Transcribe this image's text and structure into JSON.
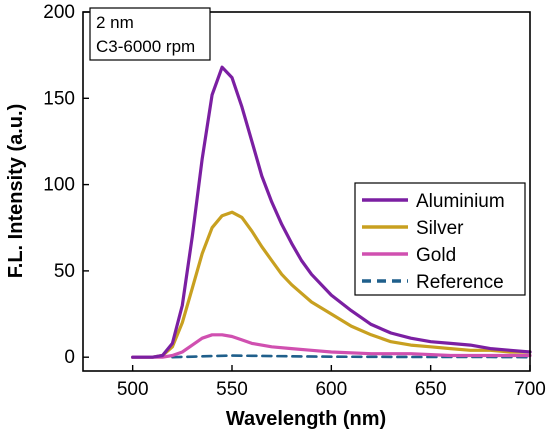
{
  "chart_data": {
    "type": "line",
    "xlabel": "Wavelength (nm)",
    "ylabel": "F.L. Intensity (a.u.)",
    "xlim": [
      475,
      700
    ],
    "ylim": [
      -8,
      200
    ],
    "x_ticks": [
      500,
      550,
      600,
      650,
      700
    ],
    "y_ticks": [
      0,
      50,
      100,
      150,
      200
    ],
    "annotation": [
      "2 nm",
      "C3-6000 rpm"
    ],
    "legend_position": "center-right",
    "grid": false,
    "series": [
      {
        "name": "Aluminium",
        "color": "#7b1fa2",
        "dash": "solid",
        "x": [
          500,
          510,
          515,
          520,
          525,
          530,
          535,
          540,
          545,
          550,
          555,
          560,
          565,
          570,
          575,
          580,
          585,
          590,
          600,
          610,
          620,
          630,
          640,
          650,
          660,
          670,
          680,
          690,
          700
        ],
        "y": [
          0,
          0,
          1,
          8,
          30,
          70,
          115,
          152,
          168,
          162,
          145,
          125,
          105,
          90,
          77,
          66,
          56,
          48,
          36,
          27,
          19,
          14,
          11,
          9,
          8,
          7,
          5,
          4,
          3
        ]
      },
      {
        "name": "Silver",
        "color": "#c8a020",
        "dash": "solid",
        "x": [
          500,
          510,
          515,
          520,
          525,
          530,
          535,
          540,
          545,
          550,
          555,
          560,
          565,
          570,
          575,
          580,
          585,
          590,
          600,
          610,
          620,
          630,
          640,
          650,
          660,
          670,
          680,
          690,
          700
        ],
        "y": [
          0,
          0,
          1,
          6,
          20,
          40,
          60,
          75,
          82,
          84,
          81,
          73,
          64,
          56,
          48,
          42,
          37,
          32,
          25,
          18,
          13,
          9,
          7,
          6,
          5,
          4,
          4,
          3,
          3
        ]
      },
      {
        "name": "Gold",
        "color": "#d050b0",
        "dash": "solid",
        "x": [
          500,
          510,
          515,
          520,
          525,
          530,
          535,
          540,
          545,
          550,
          555,
          560,
          570,
          580,
          590,
          600,
          620,
          640,
          660,
          680,
          700
        ],
        "y": [
          0,
          0,
          0,
          1,
          3,
          7,
          11,
          13,
          13,
          12,
          10,
          8,
          6,
          5,
          4,
          3,
          2,
          2,
          1,
          1,
          1
        ]
      },
      {
        "name": "Reference",
        "color": "#1f5f8b",
        "dash": "dashed",
        "x": [
          520,
          530,
          540,
          550,
          560,
          580,
          600,
          620,
          640,
          660,
          680,
          700
        ],
        "y": [
          0,
          0.3,
          0.7,
          0.9,
          0.8,
          0.5,
          0.3,
          0.2,
          0.1,
          0.1,
          0.1,
          0
        ]
      }
    ]
  }
}
